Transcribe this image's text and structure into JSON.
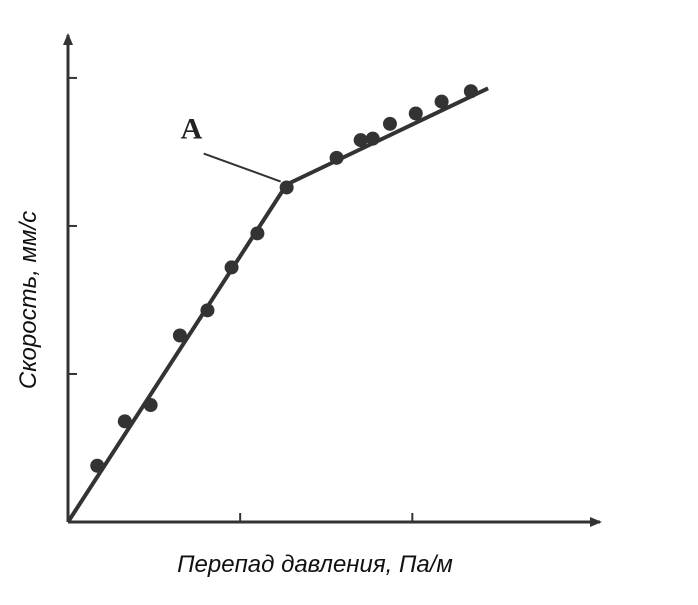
{
  "chart_data": {
    "type": "scatter",
    "x_label": "Перепад давления, Па/м",
    "y_label": "Скорость, мм/с",
    "annotation": "A",
    "color": "#333333",
    "x": [
      0.17,
      0.33,
      0.48,
      0.65,
      0.81,
      0.95,
      1.1,
      1.27,
      1.56,
      1.7,
      1.77,
      1.87,
      2.02,
      2.17,
      2.34
    ],
    "values": [
      0.38,
      0.68,
      0.79,
      1.26,
      1.43,
      1.72,
      1.95,
      2.26,
      2.46,
      2.58,
      2.59,
      2.69,
      2.76,
      2.84,
      2.91
    ],
    "line": {
      "x": [
        0,
        1.27,
        2.44
      ],
      "values": [
        0,
        2.28,
        2.93
      ]
    },
    "xlim": [
      0,
      3.09
    ],
    "ylim": [
      0,
      3.29
    ],
    "xticks": [
      1,
      2
    ],
    "yticks": [
      1,
      2,
      3
    ]
  }
}
